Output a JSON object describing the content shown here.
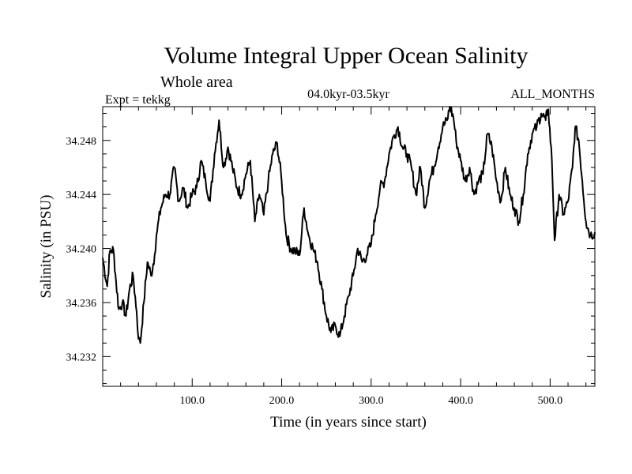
{
  "chart_data": {
    "type": "line",
    "title": "Volume Integral Upper Ocean Salinity",
    "subtitle": "Whole area",
    "expt_label": "Expt = tekkg",
    "period_label": "04.0kyr-03.5kyr",
    "months_label": "ALL_MONTHS",
    "xlabel": "Time (in years since start)",
    "ylabel": "Salinity (in PSU)",
    "xlim": [
      0,
      550
    ],
    "ylim": [
      34.2298,
      34.2505
    ],
    "x_ticks": [
      100,
      200,
      300,
      400,
      500
    ],
    "x_tick_labels": [
      "100.0",
      "200.0",
      "300.0",
      "400.0",
      "500.0"
    ],
    "y_ticks": [
      34.232,
      34.236,
      34.24,
      34.244,
      34.248
    ],
    "y_tick_labels": [
      "34.232",
      "34.236",
      "34.240",
      "34.244",
      "34.248"
    ],
    "grid": false,
    "series": [
      {
        "name": "salinity",
        "x": [
          0,
          5,
          8,
          12,
          15,
          18,
          22,
          26,
          30,
          34,
          38,
          40,
          42,
          46,
          50,
          54,
          58,
          60,
          65,
          70,
          75,
          80,
          85,
          90,
          95,
          100,
          105,
          110,
          115,
          120,
          125,
          130,
          135,
          140,
          145,
          150,
          155,
          160,
          165,
          170,
          175,
          180,
          185,
          190,
          195,
          200,
          205,
          210,
          215,
          220,
          225,
          230,
          235,
          240,
          245,
          250,
          255,
          260,
          265,
          270,
          275,
          280,
          285,
          290,
          295,
          300,
          305,
          310,
          315,
          320,
          325,
          330,
          335,
          340,
          345,
          350,
          355,
          360,
          365,
          370,
          375,
          380,
          385,
          388,
          392,
          395,
          400,
          405,
          410,
          415,
          420,
          425,
          430,
          435,
          440,
          445,
          450,
          455,
          460,
          465,
          470,
          475,
          480,
          485,
          490,
          495,
          498,
          502,
          505,
          510,
          515,
          520,
          525,
          528,
          532,
          536,
          540,
          545,
          550
        ],
        "values": [
          34.2393,
          34.2372,
          34.2398,
          34.2399,
          34.2375,
          34.2355,
          34.236,
          34.235,
          34.237,
          34.238,
          34.2353,
          34.2333,
          34.233,
          34.236,
          34.239,
          34.238,
          34.2395,
          34.241,
          34.243,
          34.244,
          34.244,
          34.246,
          34.2435,
          34.2445,
          34.243,
          34.244,
          34.2445,
          34.2465,
          34.245,
          34.2435,
          34.247,
          34.2495,
          34.246,
          34.2475,
          34.246,
          34.2445,
          34.244,
          34.2455,
          34.2465,
          34.242,
          34.244,
          34.2425,
          34.245,
          34.247,
          34.2478,
          34.245,
          34.241,
          34.24,
          34.2398,
          34.2395,
          34.243,
          34.241,
          34.24,
          34.239,
          34.237,
          34.235,
          34.2338,
          34.2343,
          34.2335,
          34.235,
          34.2365,
          34.238,
          34.24,
          34.239,
          34.2395,
          34.2403,
          34.2425,
          34.2445,
          34.245,
          34.247,
          34.2483,
          34.249,
          34.2475,
          34.247,
          34.246,
          34.244,
          34.246,
          34.243,
          34.245,
          34.246,
          34.2475,
          34.249,
          34.2495,
          34.2505,
          34.2497,
          34.248,
          34.2465,
          34.245,
          34.246,
          34.244,
          34.245,
          34.2455,
          34.2485,
          34.2475,
          34.245,
          34.2435,
          34.246,
          34.244,
          34.243,
          34.242,
          34.244,
          34.247,
          34.2485,
          34.249,
          34.25,
          34.2495,
          34.2503,
          34.2465,
          34.2406,
          34.244,
          34.2425,
          34.2435,
          34.246,
          34.249,
          34.248,
          34.245,
          34.242,
          34.241,
          34.2412
        ]
      }
    ]
  }
}
